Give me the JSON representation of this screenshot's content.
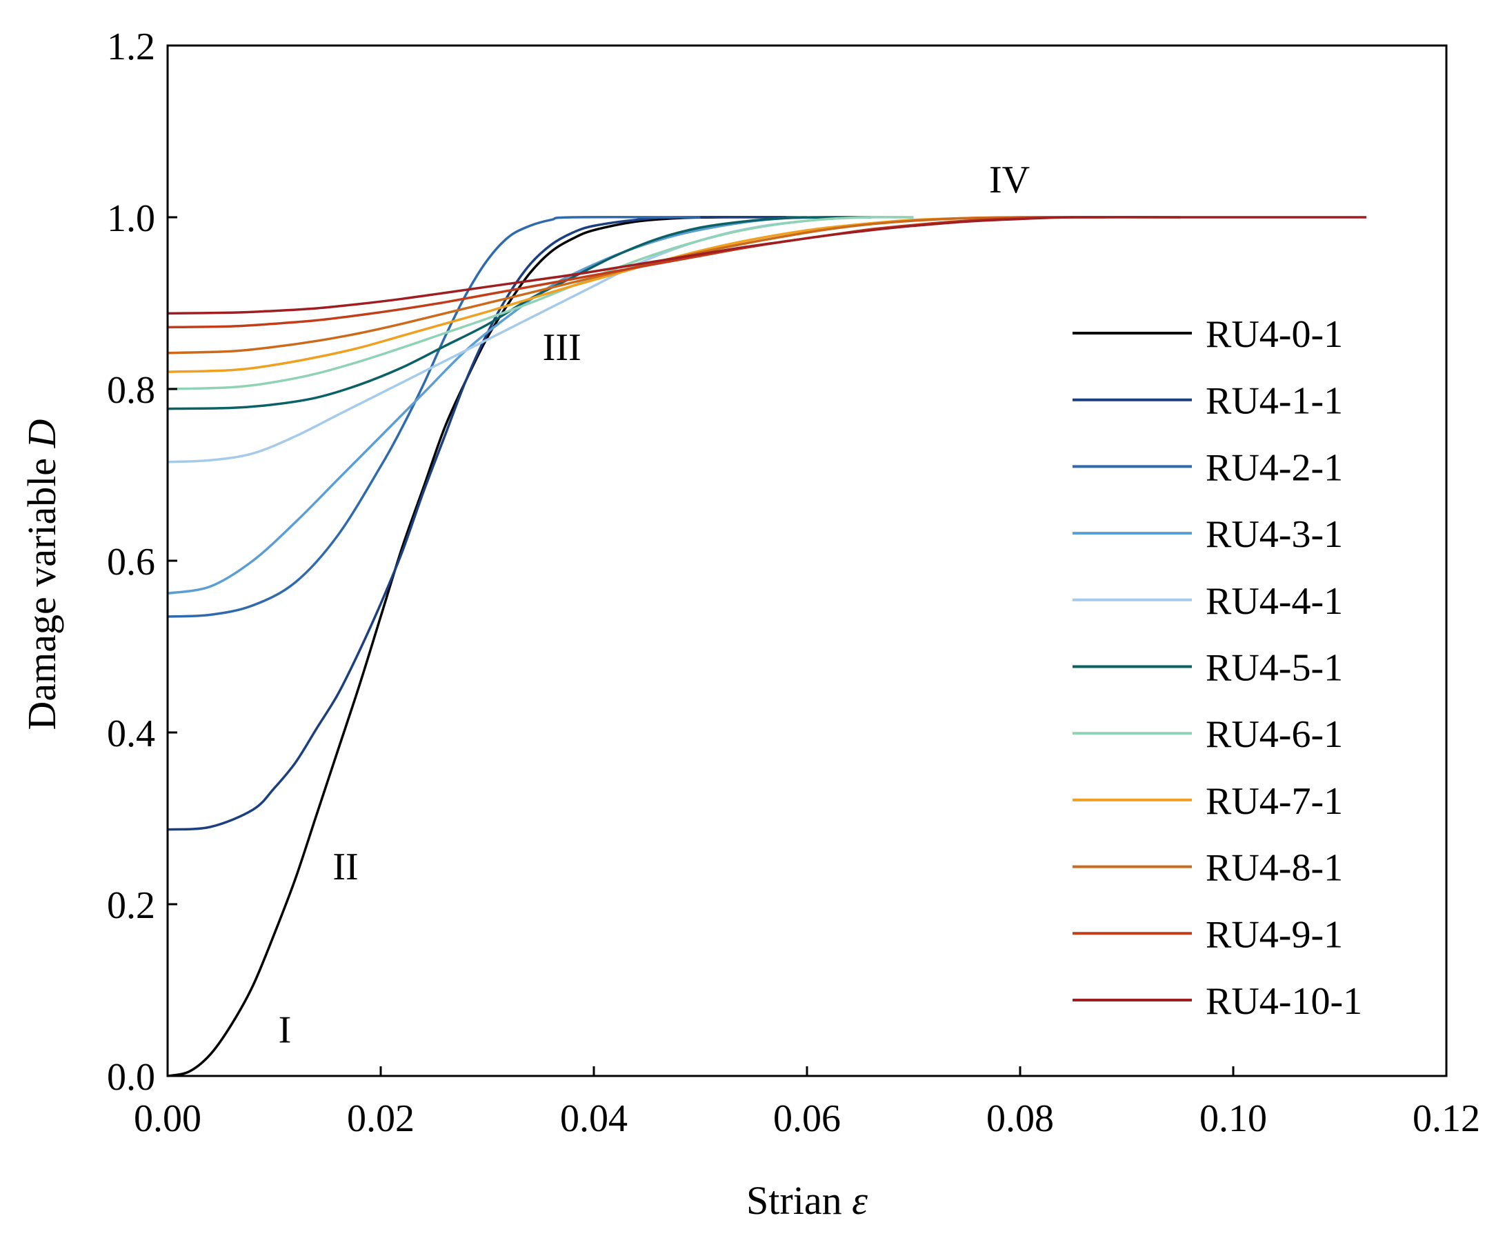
{
  "chart_data": {
    "type": "line",
    "title": "",
    "xlabel": "Strian",
    "xlabel_symbol": "ε",
    "ylabel": "Damage variable",
    "ylabel_symbol": "D",
    "xlim": [
      0,
      0.12
    ],
    "ylim": [
      0,
      1.2
    ],
    "xticks": [
      0.0,
      0.02,
      0.04,
      0.06,
      0.08,
      0.1,
      0.12
    ],
    "xtick_labels": [
      "0.00",
      "0.02",
      "0.04",
      "0.06",
      "0.08",
      "0.10",
      "0.12"
    ],
    "yticks": [
      0.0,
      0.2,
      0.4,
      0.6,
      0.8,
      1.0,
      1.2
    ],
    "ytick_labels": [
      "0.0",
      "0.2",
      "0.4",
      "0.6",
      "0.8",
      "1.0",
      "1.2"
    ],
    "legend_position": "right",
    "annotations": [
      {
        "text": "I",
        "x": 0.011,
        "y": 0.055
      },
      {
        "text": "II",
        "x": 0.0167,
        "y": 0.245
      },
      {
        "text": "III",
        "x": 0.037,
        "y": 0.85
      },
      {
        "text": "IV",
        "x": 0.079,
        "y": 1.045
      }
    ],
    "series": [
      {
        "name": "RU4-0-1",
        "color": "#000000",
        "points": [
          [
            0.0,
            0.0
          ],
          [
            0.002,
            0.005
          ],
          [
            0.004,
            0.025
          ],
          [
            0.006,
            0.06
          ],
          [
            0.008,
            0.105
          ],
          [
            0.01,
            0.165
          ],
          [
            0.012,
            0.23
          ],
          [
            0.014,
            0.305
          ],
          [
            0.016,
            0.38
          ],
          [
            0.018,
            0.455
          ],
          [
            0.02,
            0.535
          ],
          [
            0.022,
            0.615
          ],
          [
            0.024,
            0.685
          ],
          [
            0.026,
            0.755
          ],
          [
            0.028,
            0.81
          ],
          [
            0.03,
            0.86
          ],
          [
            0.032,
            0.9
          ],
          [
            0.034,
            0.935
          ],
          [
            0.036,
            0.96
          ],
          [
            0.038,
            0.975
          ],
          [
            0.04,
            0.985
          ],
          [
            0.044,
            0.995
          ],
          [
            0.048,
            0.999
          ],
          [
            0.052,
            1.0
          ],
          [
            0.058,
            1.0
          ]
        ]
      },
      {
        "name": "RU4-1-1",
        "color": "#1c3f80",
        "points": [
          [
            0.0,
            0.287
          ],
          [
            0.004,
            0.29
          ],
          [
            0.008,
            0.31
          ],
          [
            0.01,
            0.335
          ],
          [
            0.012,
            0.365
          ],
          [
            0.014,
            0.405
          ],
          [
            0.016,
            0.445
          ],
          [
            0.018,
            0.495
          ],
          [
            0.02,
            0.55
          ],
          [
            0.022,
            0.61
          ],
          [
            0.024,
            0.68
          ],
          [
            0.026,
            0.745
          ],
          [
            0.028,
            0.81
          ],
          [
            0.03,
            0.865
          ],
          [
            0.032,
            0.91
          ],
          [
            0.034,
            0.945
          ],
          [
            0.036,
            0.968
          ],
          [
            0.038,
            0.982
          ],
          [
            0.04,
            0.99
          ],
          [
            0.044,
            0.997
          ],
          [
            0.048,
            1.0
          ],
          [
            0.06,
            1.0
          ]
        ]
      },
      {
        "name": "RU4-2-1",
        "color": "#2f6aad",
        "points": [
          [
            0.0,
            0.535
          ],
          [
            0.004,
            0.537
          ],
          [
            0.008,
            0.548
          ],
          [
            0.012,
            0.575
          ],
          [
            0.016,
            0.63
          ],
          [
            0.02,
            0.71
          ],
          [
            0.022,
            0.755
          ],
          [
            0.024,
            0.805
          ],
          [
            0.026,
            0.86
          ],
          [
            0.028,
            0.91
          ],
          [
            0.03,
            0.95
          ],
          [
            0.032,
            0.977
          ],
          [
            0.034,
            0.99
          ],
          [
            0.036,
            0.997
          ],
          [
            0.038,
            1.0
          ],
          [
            0.05,
            1.0
          ]
        ]
      },
      {
        "name": "RU4-3-1",
        "color": "#5b9ed3",
        "points": [
          [
            0.0,
            0.562
          ],
          [
            0.004,
            0.57
          ],
          [
            0.008,
            0.6
          ],
          [
            0.012,
            0.645
          ],
          [
            0.016,
            0.695
          ],
          [
            0.02,
            0.745
          ],
          [
            0.024,
            0.795
          ],
          [
            0.028,
            0.845
          ],
          [
            0.032,
            0.885
          ],
          [
            0.036,
            0.92
          ],
          [
            0.04,
            0.945
          ],
          [
            0.044,
            0.965
          ],
          [
            0.048,
            0.98
          ],
          [
            0.052,
            0.99
          ],
          [
            0.056,
            0.997
          ],
          [
            0.06,
            1.0
          ],
          [
            0.066,
            1.0
          ]
        ]
      },
      {
        "name": "RU4-4-1",
        "color": "#a6cbea",
        "points": [
          [
            0.0,
            0.715
          ],
          [
            0.004,
            0.717
          ],
          [
            0.008,
            0.725
          ],
          [
            0.012,
            0.745
          ],
          [
            0.016,
            0.77
          ],
          [
            0.02,
            0.795
          ],
          [
            0.024,
            0.82
          ],
          [
            0.028,
            0.845
          ],
          [
            0.032,
            0.87
          ],
          [
            0.036,
            0.895
          ],
          [
            0.04,
            0.92
          ],
          [
            0.044,
            0.945
          ],
          [
            0.048,
            0.965
          ],
          [
            0.052,
            0.98
          ],
          [
            0.056,
            0.99
          ],
          [
            0.06,
            0.996
          ],
          [
            0.064,
            1.0
          ],
          [
            0.07,
            1.0
          ]
        ]
      },
      {
        "name": "RU4-5-1",
        "color": "#0a6166",
        "points": [
          [
            0.0,
            0.777
          ],
          [
            0.006,
            0.778
          ],
          [
            0.01,
            0.782
          ],
          [
            0.014,
            0.79
          ],
          [
            0.018,
            0.805
          ],
          [
            0.022,
            0.825
          ],
          [
            0.026,
            0.85
          ],
          [
            0.03,
            0.875
          ],
          [
            0.034,
            0.905
          ],
          [
            0.038,
            0.93
          ],
          [
            0.042,
            0.955
          ],
          [
            0.046,
            0.975
          ],
          [
            0.05,
            0.988
          ],
          [
            0.054,
            0.995
          ],
          [
            0.058,
            0.999
          ],
          [
            0.062,
            1.0
          ],
          [
            0.066,
            1.0
          ]
        ]
      },
      {
        "name": "RU4-6-1",
        "color": "#8fd3b4",
        "points": [
          [
            0.0,
            0.8
          ],
          [
            0.006,
            0.802
          ],
          [
            0.01,
            0.808
          ],
          [
            0.014,
            0.818
          ],
          [
            0.018,
            0.832
          ],
          [
            0.022,
            0.848
          ],
          [
            0.026,
            0.865
          ],
          [
            0.03,
            0.882
          ],
          [
            0.034,
            0.9
          ],
          [
            0.038,
            0.92
          ],
          [
            0.042,
            0.94
          ],
          [
            0.046,
            0.958
          ],
          [
            0.05,
            0.973
          ],
          [
            0.054,
            0.985
          ],
          [
            0.058,
            0.993
          ],
          [
            0.062,
            0.998
          ],
          [
            0.066,
            1.0
          ],
          [
            0.07,
            1.0
          ]
        ]
      },
      {
        "name": "RU4-7-1",
        "color": "#f0a020",
        "points": [
          [
            0.0,
            0.82
          ],
          [
            0.006,
            0.822
          ],
          [
            0.01,
            0.828
          ],
          [
            0.014,
            0.837
          ],
          [
            0.018,
            0.848
          ],
          [
            0.022,
            0.862
          ],
          [
            0.026,
            0.876
          ],
          [
            0.03,
            0.89
          ],
          [
            0.034,
            0.905
          ],
          [
            0.038,
            0.92
          ],
          [
            0.042,
            0.934
          ],
          [
            0.046,
            0.948
          ],
          [
            0.05,
            0.961
          ],
          [
            0.054,
            0.972
          ],
          [
            0.058,
            0.981
          ],
          [
            0.062,
            0.988
          ],
          [
            0.066,
            0.993
          ],
          [
            0.07,
            0.997
          ],
          [
            0.075,
            0.999
          ],
          [
            0.08,
            1.0
          ],
          [
            0.085,
            1.0
          ]
        ]
      },
      {
        "name": "RU4-8-1",
        "color": "#cc6a1c",
        "points": [
          [
            0.0,
            0.842
          ],
          [
            0.006,
            0.844
          ],
          [
            0.01,
            0.849
          ],
          [
            0.014,
            0.856
          ],
          [
            0.018,
            0.865
          ],
          [
            0.022,
            0.876
          ],
          [
            0.026,
            0.888
          ],
          [
            0.03,
            0.9
          ],
          [
            0.034,
            0.912
          ],
          [
            0.038,
            0.924
          ],
          [
            0.042,
            0.936
          ],
          [
            0.046,
            0.948
          ],
          [
            0.05,
            0.959
          ],
          [
            0.054,
            0.969
          ],
          [
            0.058,
            0.978
          ],
          [
            0.062,
            0.986
          ],
          [
            0.066,
            0.992
          ],
          [
            0.07,
            0.996
          ],
          [
            0.075,
            0.999
          ],
          [
            0.08,
            1.0
          ],
          [
            0.088,
            1.0
          ]
        ]
      },
      {
        "name": "RU4-9-1",
        "color": "#c13e1a",
        "points": [
          [
            0.0,
            0.872
          ],
          [
            0.006,
            0.873
          ],
          [
            0.01,
            0.876
          ],
          [
            0.014,
            0.88
          ],
          [
            0.018,
            0.886
          ],
          [
            0.022,
            0.893
          ],
          [
            0.026,
            0.901
          ],
          [
            0.03,
            0.91
          ],
          [
            0.034,
            0.919
          ],
          [
            0.038,
            0.928
          ],
          [
            0.042,
            0.937
          ],
          [
            0.046,
            0.946
          ],
          [
            0.05,
            0.955
          ],
          [
            0.054,
            0.964
          ],
          [
            0.058,
            0.972
          ],
          [
            0.062,
            0.979
          ],
          [
            0.066,
            0.986
          ],
          [
            0.07,
            0.991
          ],
          [
            0.075,
            0.996
          ],
          [
            0.08,
            0.999
          ],
          [
            0.085,
            1.0
          ],
          [
            0.095,
            1.0
          ]
        ]
      },
      {
        "name": "RU4-10-1",
        "color": "#9e1e22",
        "points": [
          [
            0.0,
            0.888
          ],
          [
            0.006,
            0.889
          ],
          [
            0.01,
            0.891
          ],
          [
            0.014,
            0.894
          ],
          [
            0.018,
            0.899
          ],
          [
            0.022,
            0.905
          ],
          [
            0.026,
            0.912
          ],
          [
            0.03,
            0.919
          ],
          [
            0.034,
            0.926
          ],
          [
            0.038,
            0.933
          ],
          [
            0.042,
            0.941
          ],
          [
            0.046,
            0.949
          ],
          [
            0.05,
            0.957
          ],
          [
            0.054,
            0.965
          ],
          [
            0.058,
            0.972
          ],
          [
            0.062,
            0.979
          ],
          [
            0.066,
            0.985
          ],
          [
            0.07,
            0.99
          ],
          [
            0.075,
            0.995
          ],
          [
            0.08,
            0.998
          ],
          [
            0.085,
            1.0
          ],
          [
            0.095,
            1.0
          ],
          [
            0.105,
            1.0
          ],
          [
            0.1125,
            1.0
          ]
        ]
      }
    ]
  }
}
